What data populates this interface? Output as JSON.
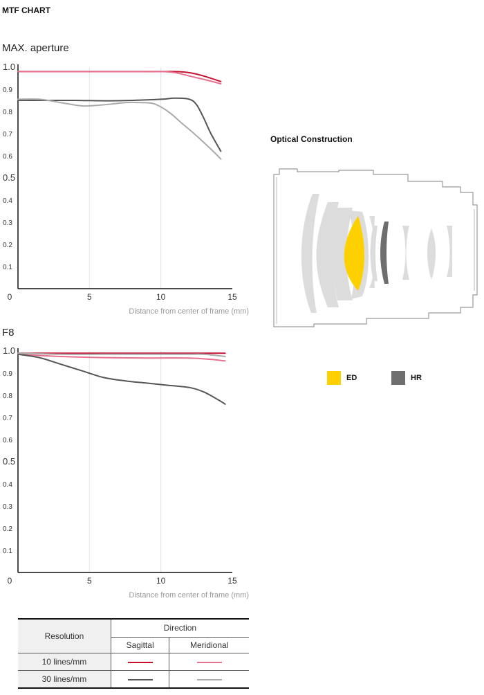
{
  "page_title": "MTF CHART",
  "chart_data": [
    {
      "type": "line",
      "title": "MAX. aperture",
      "xlabel": "Distance from center of frame (mm)",
      "ylabel": "",
      "xlim": [
        0,
        15
      ],
      "ylim": [
        0,
        1.0
      ],
      "x_ticks": [
        "0",
        "5",
        "10",
        "15"
      ],
      "y_ticks": [
        "0.1",
        "0.2",
        "0.3",
        "0.4",
        "0.5",
        "0.6",
        "0.7",
        "0.8",
        "0.9",
        "1.0"
      ],
      "series": [
        {
          "id": "10s",
          "color": "#c8102e",
          "x": [
            0,
            2,
            4,
            6,
            8,
            10,
            11,
            12,
            13,
            14.2
          ],
          "y": [
            0.98,
            0.98,
            0.98,
            0.98,
            0.98,
            0.98,
            0.98,
            0.975,
            0.96,
            0.935
          ]
        },
        {
          "id": "10m",
          "color": "#e8708c",
          "x": [
            0,
            2,
            4,
            6,
            8,
            10,
            11,
            12,
            13,
            14.2
          ],
          "y": [
            0.98,
            0.98,
            0.98,
            0.98,
            0.98,
            0.98,
            0.975,
            0.96,
            0.945,
            0.925
          ]
        },
        {
          "id": "30s",
          "color": "#555555",
          "x": [
            0,
            2,
            4,
            6,
            8,
            10,
            11,
            12,
            12.5,
            13,
            13.5,
            14.2
          ],
          "y": [
            0.85,
            0.85,
            0.85,
            0.848,
            0.85,
            0.855,
            0.86,
            0.855,
            0.83,
            0.77,
            0.7,
            0.62
          ]
        },
        {
          "id": "30m",
          "color": "#aaaaaa",
          "x": [
            0,
            1.5,
            3,
            4.5,
            6,
            7.5,
            8.5,
            9.5,
            10.5,
            11.5,
            12.5,
            13.5,
            14.2
          ],
          "y": [
            0.855,
            0.855,
            0.84,
            0.825,
            0.83,
            0.84,
            0.84,
            0.835,
            0.8,
            0.745,
            0.69,
            0.63,
            0.585
          ]
        }
      ]
    },
    {
      "type": "line",
      "title": "F8",
      "xlabel": "Distance from center of frame (mm)",
      "ylabel": "",
      "xlim": [
        0,
        15
      ],
      "ylim": [
        0,
        1.0
      ],
      "x_ticks": [
        "0",
        "5",
        "10",
        "15"
      ],
      "y_ticks": [
        "0.1",
        "0.2",
        "0.3",
        "0.4",
        "0.5",
        "0.6",
        "0.7",
        "0.8",
        "0.9",
        "1.0"
      ],
      "series": [
        {
          "id": "10s",
          "color": "#c8102e",
          "x": [
            0,
            3,
            6,
            9,
            12,
            14.5
          ],
          "y": [
            0.99,
            0.99,
            0.99,
            0.99,
            0.99,
            0.99
          ]
        },
        {
          "id": "10m",
          "color": "#e8708c",
          "x": [
            0,
            3,
            6,
            9,
            12,
            13.5,
            14.5
          ],
          "y": [
            0.985,
            0.975,
            0.97,
            0.968,
            0.968,
            0.962,
            0.955
          ]
        },
        {
          "id": "30s",
          "color": "#555555",
          "x": [
            0,
            1.5,
            3,
            4.5,
            6,
            7.5,
            9,
            10.5,
            12,
            13,
            14,
            14.5
          ],
          "y": [
            0.985,
            0.97,
            0.94,
            0.91,
            0.88,
            0.865,
            0.855,
            0.845,
            0.835,
            0.815,
            0.78,
            0.76
          ]
        },
        {
          "id": "30m",
          "color": "#aaaaaa",
          "x": [
            0,
            3,
            6,
            9,
            12,
            13,
            14.5
          ],
          "y": [
            0.99,
            0.985,
            0.985,
            0.985,
            0.985,
            0.985,
            0.975
          ]
        }
      ]
    }
  ],
  "optical_construction": {
    "title": "Optical Construction",
    "legend": [
      {
        "label": "ED",
        "color": "#ffd000"
      },
      {
        "label": "HR",
        "color": "#6e6e6e"
      }
    ]
  },
  "legend_table": {
    "resolution_header": "Resolution",
    "direction_header": "Direction",
    "sagittal": "Sagittal",
    "meridional": "Meridional",
    "rows": [
      {
        "label": "10 lines/mm",
        "sagittal_color": "#c8102e",
        "meridional_color": "#e8708c"
      },
      {
        "label": "30 lines/mm",
        "sagittal_color": "#555555",
        "meridional_color": "#aaaaaa"
      }
    ]
  }
}
